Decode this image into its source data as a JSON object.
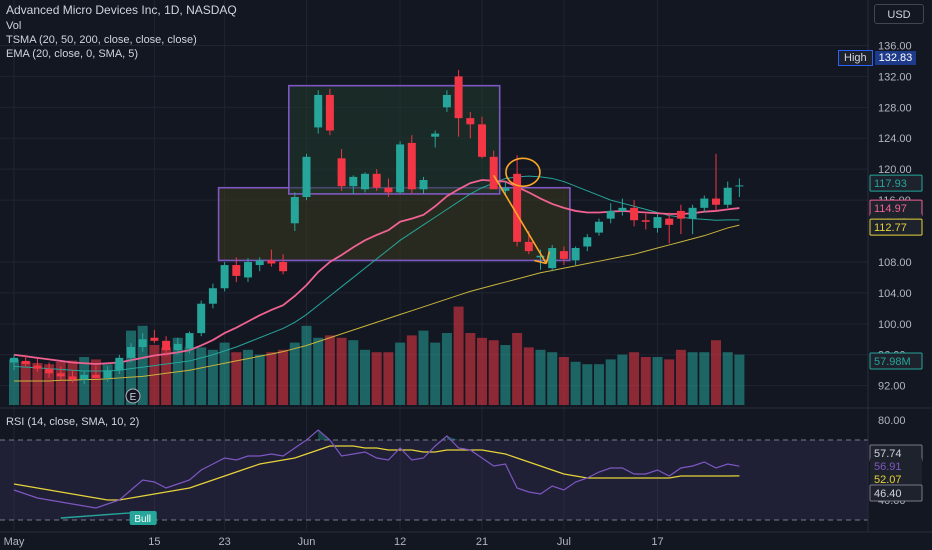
{
  "header": {
    "symbol_line": "Advanced Micro Devices Inc, 1D, NASDAQ",
    "vol_label": "Vol",
    "tsma_label": "TSMA (20, 50, 200, close, close, close)",
    "ema_label": "EMA (20, close, 0, SMA, 5)",
    "rsi_label": "RSI (14, close, SMA, 10, 2)",
    "currency": "USD"
  },
  "high_marker": {
    "label": "High",
    "value": "132.83"
  },
  "colors": {
    "background": "#131722",
    "up": "#26a69a",
    "down": "#f23645",
    "ema": "#f06292",
    "sma_fast": "#26a69a",
    "sma_slow": "#c9b43c",
    "rsi_line": "#7e57c2",
    "rsi_ma": "#e6d33a",
    "zone_box": "#7e57c2",
    "arrow": "#ffa726",
    "upper_zone_fill": "#1f3a2b",
    "lower_zone_fill": "#3a3a1f"
  },
  "chart_data": {
    "type": "candlestick",
    "price_axis": {
      "ticks": [
        "136.00",
        "132.00",
        "128.00",
        "124.00",
        "120.00",
        "116.00",
        "108.00",
        "104.00",
        "100.00",
        "96.00",
        "92.00"
      ],
      "range": [
        89.5,
        138
      ]
    },
    "time_axis": {
      "ticks": [
        "May",
        "15",
        "23",
        "Jun",
        "12",
        "21",
        "Jul",
        "17"
      ],
      "tick_index": [
        0,
        12,
        18,
        25,
        33,
        40,
        47,
        55
      ]
    },
    "candles": [
      {
        "o": 95,
        "h": 96,
        "l": 94,
        "c": 95.6
      },
      {
        "o": 95.2,
        "h": 96,
        "l": 94.5,
        "c": 94.8
      },
      {
        "o": 94.6,
        "h": 95.5,
        "l": 93.8,
        "c": 94.2
      },
      {
        "o": 94.2,
        "h": 95,
        "l": 93,
        "c": 93.6
      },
      {
        "o": 93.6,
        "h": 94.5,
        "l": 92.8,
        "c": 93.2
      },
      {
        "o": 93.2,
        "h": 94,
        "l": 92.4,
        "c": 92.8
      },
      {
        "o": 92.8,
        "h": 93.8,
        "l": 92.2,
        "c": 93.4
      },
      {
        "o": 93.4,
        "h": 94.6,
        "l": 92.8,
        "c": 93
      },
      {
        "o": 93,
        "h": 94.5,
        "l": 92.5,
        "c": 94
      },
      {
        "o": 94,
        "h": 96,
        "l": 93.5,
        "c": 95.6
      },
      {
        "o": 95.6,
        "h": 97.5,
        "l": 95,
        "c": 97
      },
      {
        "o": 97,
        "h": 98.8,
        "l": 96.4,
        "c": 98
      },
      {
        "o": 98.2,
        "h": 99.2,
        "l": 97.5,
        "c": 97.8
      },
      {
        "o": 97.8,
        "h": 98.4,
        "l": 95.8,
        "c": 96.6
      },
      {
        "o": 96.6,
        "h": 98.2,
        "l": 96,
        "c": 97.4
      },
      {
        "o": 96.8,
        "h": 99,
        "l": 96.2,
        "c": 98.8
      },
      {
        "o": 98.8,
        "h": 103,
        "l": 98.4,
        "c": 102.6
      },
      {
        "o": 102.6,
        "h": 105.2,
        "l": 102,
        "c": 104.6
      },
      {
        "o": 104.6,
        "h": 108,
        "l": 104.2,
        "c": 107.6
      },
      {
        "o": 107.6,
        "h": 108.6,
        "l": 105.4,
        "c": 106.2
      },
      {
        "o": 106,
        "h": 108.5,
        "l": 105.4,
        "c": 108
      },
      {
        "o": 107.6,
        "h": 108.6,
        "l": 106.8,
        "c": 108.2
      },
      {
        "o": 108.2,
        "h": 109.6,
        "l": 107.4,
        "c": 107.8
      },
      {
        "o": 108,
        "h": 109,
        "l": 106.4,
        "c": 106.8
      },
      {
        "o": 113,
        "h": 117,
        "l": 112,
        "c": 116.4
      },
      {
        "o": 116.4,
        "h": 122,
        "l": 116,
        "c": 121.6
      },
      {
        "o": 125.4,
        "h": 130.2,
        "l": 124.6,
        "c": 129.6
      },
      {
        "o": 129.6,
        "h": 130.4,
        "l": 124.4,
        "c": 125
      },
      {
        "o": 121.4,
        "h": 122.6,
        "l": 117.2,
        "c": 117.8
      },
      {
        "o": 117.8,
        "h": 119.2,
        "l": 116.8,
        "c": 119
      },
      {
        "o": 117.4,
        "h": 119.6,
        "l": 117,
        "c": 119.4
      },
      {
        "o": 119.4,
        "h": 120,
        "l": 117.2,
        "c": 117.6
      },
      {
        "o": 117.6,
        "h": 118.8,
        "l": 116.4,
        "c": 117
      },
      {
        "o": 117,
        "h": 123.6,
        "l": 116.8,
        "c": 123.2
      },
      {
        "o": 123.4,
        "h": 124.4,
        "l": 116.8,
        "c": 117.4
      },
      {
        "o": 117.4,
        "h": 119,
        "l": 116.8,
        "c": 118.6
      },
      {
        "o": 124.2,
        "h": 125,
        "l": 122.8,
        "c": 124.6
      },
      {
        "o": 128,
        "h": 130.2,
        "l": 127.4,
        "c": 129.6
      },
      {
        "o": 132,
        "h": 132.83,
        "l": 124.2,
        "c": 126.6
      },
      {
        "o": 126.6,
        "h": 127.4,
        "l": 124,
        "c": 125.8
      },
      {
        "o": 125.8,
        "h": 126.8,
        "l": 121.4,
        "c": 121.6
      },
      {
        "o": 121.6,
        "h": 122.4,
        "l": 117.6,
        "c": 117.4
      },
      {
        "o": 117.2,
        "h": 118.4,
        "l": 116.6,
        "c": 117.6
      },
      {
        "o": 119.4,
        "h": 121.8,
        "l": 110,
        "c": 110.6
      },
      {
        "o": 110.6,
        "h": 112,
        "l": 109,
        "c": 109.4
      },
      {
        "o": 108.6,
        "h": 109.6,
        "l": 107,
        "c": 108.8
      },
      {
        "o": 107.2,
        "h": 110.2,
        "l": 106.8,
        "c": 109.8
      },
      {
        "o": 109.4,
        "h": 110,
        "l": 107.6,
        "c": 108.4
      },
      {
        "o": 108.2,
        "h": 110,
        "l": 107.6,
        "c": 109.8
      },
      {
        "o": 110,
        "h": 111.6,
        "l": 109.4,
        "c": 111.2
      },
      {
        "o": 111.8,
        "h": 113.6,
        "l": 111.4,
        "c": 113.2
      },
      {
        "o": 113.6,
        "h": 115.6,
        "l": 113,
        "c": 114.6
      },
      {
        "o": 114.6,
        "h": 116.2,
        "l": 114,
        "c": 115
      },
      {
        "o": 115,
        "h": 116,
        "l": 112.6,
        "c": 113.4
      },
      {
        "o": 113.4,
        "h": 114.2,
        "l": 112.2,
        "c": 113.2
      },
      {
        "o": 112.4,
        "h": 114.2,
        "l": 111.8,
        "c": 113.8
      },
      {
        "o": 113.6,
        "h": 114.4,
        "l": 110.4,
        "c": 112.8
      },
      {
        "o": 114.6,
        "h": 115.4,
        "l": 111.6,
        "c": 113.6
      },
      {
        "o": 113.6,
        "h": 115.4,
        "l": 111.6,
        "c": 115
      },
      {
        "o": 115,
        "h": 116.6,
        "l": 114.4,
        "c": 116.2
      },
      {
        "o": 116.2,
        "h": 122,
        "l": 114.6,
        "c": 115.4
      },
      {
        "o": 115.4,
        "h": 118.4,
        "l": 115,
        "c": 117.6
      },
      {
        "o": 117.8,
        "h": 118.8,
        "l": 116.4,
        "c": 117.9
      }
    ],
    "volume": [
      0.38,
      0.36,
      0.35,
      0.34,
      0.36,
      0.37,
      0.4,
      0.38,
      0.34,
      0.36,
      0.62,
      0.66,
      0.5,
      0.48,
      0.56,
      0.48,
      0.48,
      0.46,
      0.52,
      0.44,
      0.46,
      0.42,
      0.44,
      0.46,
      0.52,
      0.66,
      0.56,
      0.58,
      0.56,
      0.54,
      0.46,
      0.44,
      0.44,
      0.52,
      0.58,
      0.62,
      0.52,
      0.6,
      0.82,
      0.6,
      0.56,
      0.54,
      0.5,
      0.6,
      0.48,
      0.46,
      0.44,
      0.4,
      0.36,
      0.34,
      0.34,
      0.38,
      0.42,
      0.44,
      0.4,
      0.4,
      0.38,
      0.46,
      0.44,
      0.44,
      0.54,
      0.44,
      0.42
    ],
    "ema20": [
      96,
      95.8,
      95.6,
      95.4,
      95.2,
      95,
      94.9,
      94.8,
      94.9,
      95,
      95.3,
      95.6,
      95.9,
      96.1,
      96.3,
      96.6,
      97.2,
      97.9,
      98.8,
      99.5,
      100.3,
      101.1,
      101.8,
      102.4,
      103.6,
      105,
      106.7,
      108,
      108.9,
      109.9,
      110.8,
      111.5,
      112.1,
      113.2,
      113.6,
      114.1,
      115.2,
      116.5,
      117.4,
      118.2,
      118.6,
      118.5,
      118.4,
      117.7,
      117,
      116.2,
      115.5,
      115,
      114.6,
      114.4,
      114.4,
      114.5,
      114.6,
      114.5,
      114.4,
      114.3,
      114.2,
      114.2,
      114.3,
      114.5,
      114.6,
      114.8,
      114.97
    ],
    "sma_fast": [
      94.5,
      94.4,
      94.3,
      94.2,
      94.1,
      94,
      93.9,
      93.9,
      93.9,
      94,
      94.2,
      94.4,
      94.6,
      94.8,
      95,
      95.2,
      95.6,
      96,
      96.5,
      97,
      97.6,
      98.2,
      98.8,
      99.4,
      100.2,
      101.2,
      102.4,
      103.6,
      104.8,
      106,
      107.2,
      108.4,
      109.6,
      110.8,
      111.8,
      112.8,
      113.8,
      114.8,
      115.8,
      116.8,
      117.6,
      118.2,
      118.8,
      119,
      119.1,
      119,
      118.8,
      118.4,
      117.8,
      117.2,
      116.6,
      116,
      115.6,
      115.2,
      114.8,
      114.4,
      114,
      113.8,
      113.6,
      113.5,
      113.4,
      113.45,
      113.45
    ],
    "sma_slow": [
      92.6,
      92.6,
      92.6,
      92.6,
      92.7,
      92.7,
      92.8,
      92.8,
      92.9,
      93,
      93.1,
      93.2,
      93.4,
      93.6,
      93.8,
      94,
      94.3,
      94.6,
      94.9,
      95.2,
      95.5,
      95.8,
      96.1,
      96.4,
      96.8,
      97.2,
      97.7,
      98.2,
      98.7,
      99.2,
      99.7,
      100.2,
      100.7,
      101.2,
      101.7,
      102.2,
      102.7,
      103.2,
      103.7,
      104.2,
      104.6,
      105,
      105.4,
      105.8,
      106.2,
      106.6,
      106.9,
      107.2,
      107.5,
      107.8,
      108.1,
      108.4,
      108.7,
      109,
      109.4,
      109.8,
      110.2,
      110.6,
      111,
      111.4,
      111.9,
      112.4,
      112.77
    ],
    "rsi": [
      45,
      43,
      41,
      40,
      39,
      38,
      37,
      36,
      38,
      40,
      45,
      50,
      49,
      46,
      48,
      50,
      55,
      58,
      61,
      60,
      62,
      62,
      63,
      62,
      66,
      70,
      75,
      70,
      62,
      63,
      64,
      61,
      60,
      66,
      60,
      61,
      67,
      72,
      66,
      65,
      61,
      57,
      58,
      46,
      44,
      43,
      47,
      45,
      49,
      51,
      54,
      56,
      56,
      53,
      53,
      55,
      52,
      56,
      57,
      59,
      56,
      58,
      56.91
    ],
    "rsi_ma": [
      48,
      47,
      46,
      45,
      44,
      43,
      42,
      41,
      40,
      40,
      41,
      42,
      43,
      44,
      45,
      46,
      48,
      50,
      52,
      54,
      56,
      58,
      59,
      60,
      61,
      63,
      65,
      67,
      67,
      67,
      66,
      66,
      65,
      65,
      65,
      64,
      64,
      65,
      65,
      65,
      65,
      64,
      63,
      61,
      59,
      57,
      55,
      53,
      52,
      51,
      51,
      51,
      51,
      51,
      51,
      51,
      51,
      52,
      52,
      52,
      52,
      52,
      52.07
    ],
    "rsi_axis": {
      "ticks": [
        "80.00",
        "40.00"
      ],
      "upper_band": 70,
      "lower_band": 30,
      "range": [
        25,
        85
      ]
    },
    "last_values": {
      "price": "117.93",
      "ema": "114.97",
      "sma_fast": "113.45",
      "sma_slow": "112.77",
      "volume": "57.98M",
      "rsi_band_upper": "57.74",
      "rsi": "56.91",
      "rsi_ma": "52.07",
      "rsi_band_lower": "46.40"
    },
    "annotations": {
      "earnings_icon_label": "E",
      "bull_label": "Bull",
      "upper_zone": {
        "x_from": 24,
        "x_to": 41,
        "y_from": 116.8,
        "y_to": 130.8
      },
      "lower_zone": {
        "x_from": 18,
        "x_to": 47,
        "y_from": 108.2,
        "y_to": 117.6
      },
      "ellipse": {
        "x": 43.5,
        "y": 119.6
      },
      "arrow": {
        "x_from": 41,
        "y_from": 119.2,
        "x_to": 45.5,
        "y_to": 107.8
      },
      "bull_divergence": {
        "x_from": 4,
        "y_from": 31,
        "x_to": 11,
        "y_to": 34
      }
    }
  }
}
